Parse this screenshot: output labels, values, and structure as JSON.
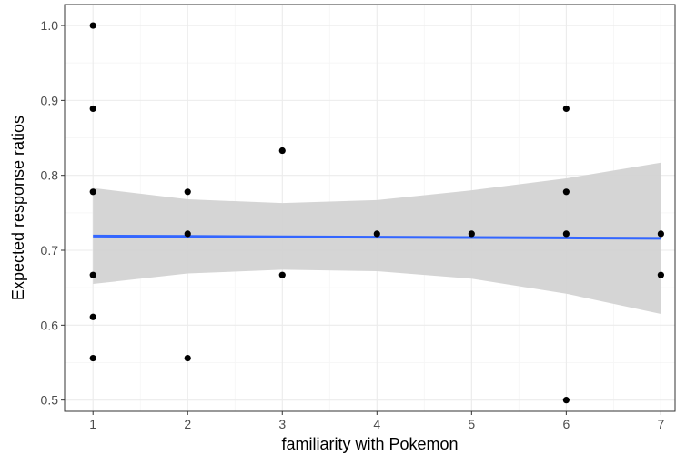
{
  "chart_data": {
    "type": "scatter",
    "xlabel": "familiarity with Pokemon",
    "ylabel": "Expected response ratios",
    "xlim": [
      0.7,
      7.15
    ],
    "ylim": [
      0.485,
      1.028
    ],
    "x_ticks": [
      1,
      2,
      3,
      4,
      5,
      6,
      7
    ],
    "x_tick_labels": [
      "1",
      "2",
      "3",
      "4",
      "5",
      "6",
      "7"
    ],
    "y_ticks": [
      0.5,
      0.6,
      0.7,
      0.8,
      0.9,
      1.0
    ],
    "y_tick_labels": [
      "0.5",
      "0.6",
      "0.7",
      "0.8",
      "0.9",
      "1.0"
    ],
    "grid": true,
    "points": [
      {
        "x": 1,
        "y": 1.0
      },
      {
        "x": 1,
        "y": 0.889
      },
      {
        "x": 1,
        "y": 0.778
      },
      {
        "x": 1,
        "y": 0.667
      },
      {
        "x": 1,
        "y": 0.611
      },
      {
        "x": 1,
        "y": 0.556
      },
      {
        "x": 2,
        "y": 0.778
      },
      {
        "x": 2,
        "y": 0.722
      },
      {
        "x": 2,
        "y": 0.556
      },
      {
        "x": 3,
        "y": 0.833
      },
      {
        "x": 3,
        "y": 0.667
      },
      {
        "x": 4,
        "y": 0.722
      },
      {
        "x": 5,
        "y": 0.722
      },
      {
        "x": 6,
        "y": 0.889
      },
      {
        "x": 6,
        "y": 0.778
      },
      {
        "x": 6,
        "y": 0.722
      },
      {
        "x": 6,
        "y": 0.5
      },
      {
        "x": 7,
        "y": 0.722
      },
      {
        "x": 7,
        "y": 0.667
      }
    ],
    "fit_line": {
      "x": [
        1,
        2,
        3,
        4,
        5,
        6,
        7
      ],
      "y": [
        0.719,
        0.7185,
        0.718,
        0.7175,
        0.717,
        0.7165,
        0.716
      ]
    },
    "confidence_band": {
      "x": [
        1,
        2,
        3,
        4,
        5,
        6,
        7
      ],
      "lower": [
        0.655,
        0.669,
        0.674,
        0.672,
        0.662,
        0.642,
        0.615
      ],
      "upper": [
        0.783,
        0.768,
        0.763,
        0.767,
        0.78,
        0.796,
        0.817
      ]
    },
    "colors": {
      "points": "#000000",
      "fit_line": "#3366ff",
      "band": "#d3d3d3",
      "grid_major": "#ebebeb",
      "grid_minor": "#f5f5f5",
      "panel_border": "#333333"
    }
  }
}
